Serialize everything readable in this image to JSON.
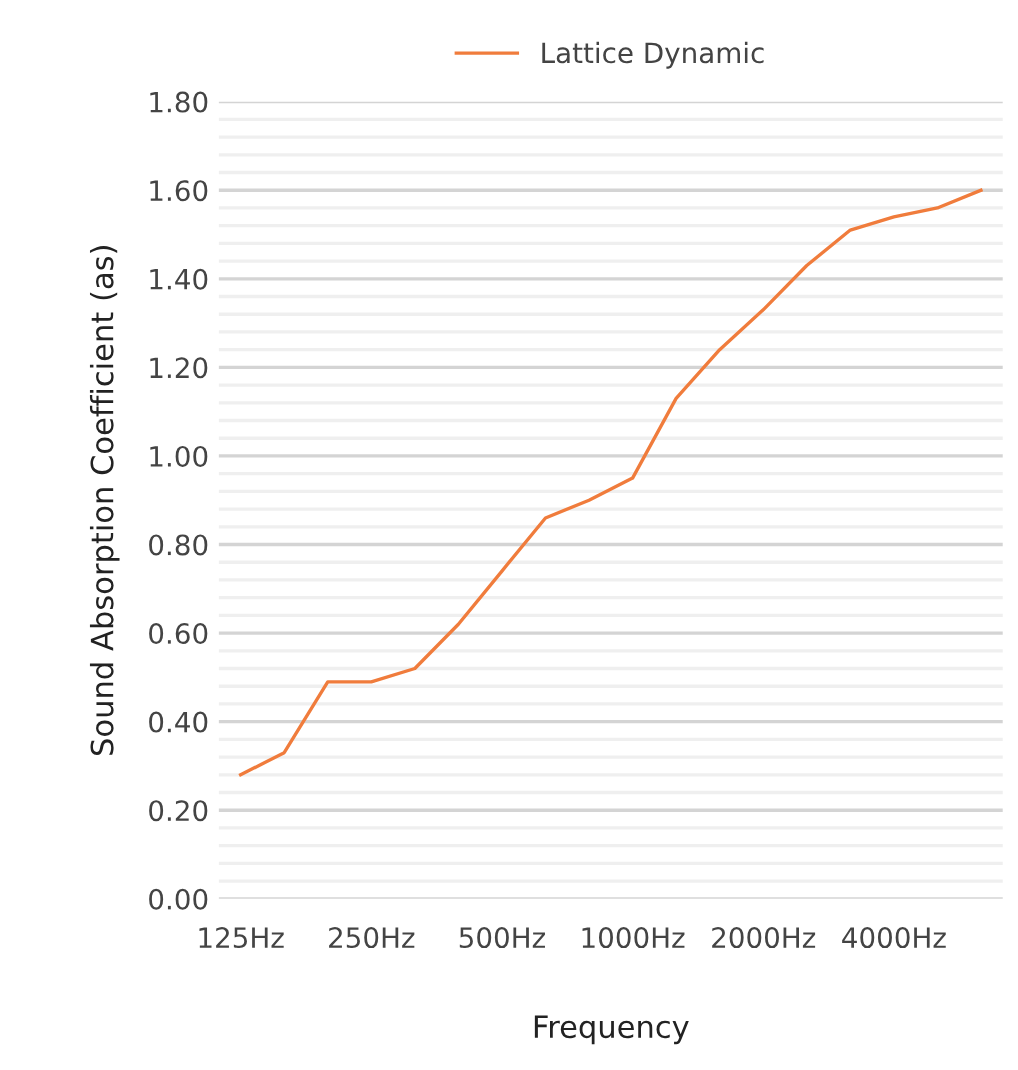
{
  "chart_data": {
    "type": "line",
    "xlabel": "Frequency",
    "ylabel": "Sound Absorption Coefficient (as)",
    "categories": [
      "125Hz",
      null,
      null,
      "250Hz",
      null,
      null,
      "500Hz",
      null,
      null,
      "1000Hz",
      null,
      null,
      "2000Hz",
      null,
      null,
      "4000Hz",
      null,
      null
    ],
    "series": [
      {
        "name": "Lattice Dynamic",
        "color": "#f07c3c",
        "values": [
          0.28,
          0.33,
          0.49,
          0.49,
          0.52,
          0.62,
          0.74,
          0.86,
          0.9,
          0.95,
          1.13,
          1.24,
          1.33,
          1.43,
          1.51,
          1.54,
          1.56,
          1.6
        ]
      }
    ],
    "ylim": [
      0,
      1.8
    ],
    "yticks": [
      {
        "value": 0,
        "label": "0.00"
      },
      {
        "value": 0.04,
        "label": null
      },
      {
        "value": 0.08,
        "label": null
      },
      {
        "value": 0.12,
        "label": null
      },
      {
        "value": 0.16,
        "label": null
      },
      {
        "value": 0.2,
        "label": "0.20"
      },
      {
        "value": 0.24,
        "label": null
      },
      {
        "value": 0.28,
        "label": null
      },
      {
        "value": 0.32,
        "label": null
      },
      {
        "value": 0.36,
        "label": null
      },
      {
        "value": 0.4,
        "label": "0.40"
      },
      {
        "value": 0.44,
        "label": null
      },
      {
        "value": 0.48,
        "label": null
      },
      {
        "value": 0.52,
        "label": null
      },
      {
        "value": 0.56,
        "label": null
      },
      {
        "value": 0.6,
        "label": "0.60"
      },
      {
        "value": 0.64,
        "label": null
      },
      {
        "value": 0.68,
        "label": null
      },
      {
        "value": 0.72,
        "label": null
      },
      {
        "value": 0.76,
        "label": null
      },
      {
        "value": 0.8,
        "label": "0.80"
      },
      {
        "value": 0.84,
        "label": null
      },
      {
        "value": 0.88,
        "label": null
      },
      {
        "value": 0.92,
        "label": null
      },
      {
        "value": 0.96,
        "label": null
      },
      {
        "value": 1.0,
        "label": "1.00"
      },
      {
        "value": 1.04,
        "label": null
      },
      {
        "value": 1.08,
        "label": null
      },
      {
        "value": 1.12,
        "label": null
      },
      {
        "value": 1.16,
        "label": null
      },
      {
        "value": 1.2,
        "label": "1.20"
      },
      {
        "value": 1.24,
        "label": null
      },
      {
        "value": 1.28,
        "label": null
      },
      {
        "value": 1.32,
        "label": null
      },
      {
        "value": 1.36,
        "label": null
      },
      {
        "value": 1.4,
        "label": "1.40"
      },
      {
        "value": 1.44,
        "label": null
      },
      {
        "value": 1.48,
        "label": null
      },
      {
        "value": 1.52,
        "label": null
      },
      {
        "value": 1.56,
        "label": null
      },
      {
        "value": 1.6,
        "label": "1.60"
      },
      {
        "value": 1.64,
        "label": null
      },
      {
        "value": 1.68,
        "label": null
      },
      {
        "value": 1.72,
        "label": null
      },
      {
        "value": 1.76,
        "label": null
      },
      {
        "value": 1.8,
        "label": "1.80"
      }
    ],
    "grid": "y",
    "legend": "top",
    "marker": "none",
    "line_style": "solid"
  }
}
